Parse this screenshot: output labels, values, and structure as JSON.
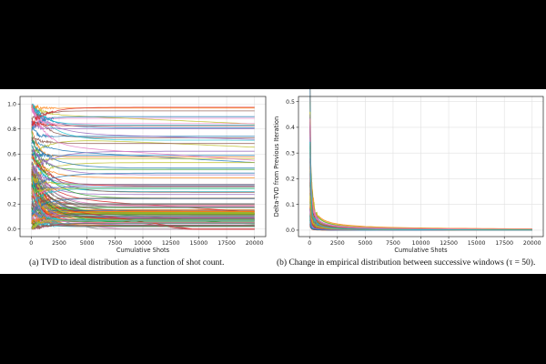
{
  "figure": {
    "captions": [
      "(a)  TVD to ideal distribution as a function of shot count.",
      "(b)  Change in empirical distribution between successive windows (τ = 50)."
    ]
  },
  "chart_data": [
    {
      "type": "line",
      "panel": "a",
      "xlabel": "Cumulative Shots",
      "ylabel": "TVD from Ground Truth",
      "xlim": [
        -1000,
        21000
      ],
      "ylim": [
        -0.06,
        1.06
      ],
      "xticks": [
        "0",
        "2500",
        "5000",
        "7500",
        "10000",
        "12500",
        "15000",
        "17500",
        "20000"
      ],
      "yticks": [
        "0.0",
        "0.2",
        "0.4",
        "0.6",
        "0.8",
        "1.0"
      ],
      "grid": true,
      "series_count": 120,
      "description": "Many runs; each converges from a noisy start near x=0 to a flat plateau between 0 and 1.",
      "sample_series": [
        {
          "x": [
            0,
            2500,
            5000,
            10000,
            15000,
            20000
          ],
          "values": [
            0.92,
            0.85,
            0.8,
            0.75,
            0.7,
            0.66
          ]
        },
        {
          "x": [
            0,
            2500,
            5000,
            10000,
            15000,
            20000
          ],
          "values": [
            0.75,
            0.6,
            0.56,
            0.55,
            0.54,
            0.54
          ]
        },
        {
          "x": [
            0,
            2500,
            5000,
            10000,
            15000,
            20000
          ],
          "values": [
            0.4,
            0.34,
            0.33,
            0.33,
            0.33,
            0.33
          ]
        },
        {
          "x": [
            0,
            2500,
            5000,
            10000,
            15000,
            20000
          ],
          "values": [
            0.3,
            0.2,
            0.18,
            0.18,
            0.18,
            0.18
          ]
        },
        {
          "x": [
            0,
            2500,
            5000,
            10000,
            15000,
            20000
          ],
          "values": [
            0.1,
            0.05,
            0.04,
            0.04,
            0.04,
            0.04
          ]
        }
      ]
    },
    {
      "type": "line",
      "panel": "b",
      "xlabel": "Cumulative Shots",
      "ylabel": "Delta-TVD from Previous Iteration",
      "xlim": [
        -1000,
        21000
      ],
      "ylim": [
        -0.025,
        0.52
      ],
      "xticks": [
        "0",
        "2500",
        "5000",
        "7500",
        "10000",
        "12500",
        "15000",
        "17500",
        "20000"
      ],
      "yticks": [
        "0.0",
        "0.1",
        "0.2",
        "0.3",
        "0.4",
        "0.5"
      ],
      "grid": true,
      "series_count": 120,
      "description": "Deltas start up to ~0.5 near x=0 and decay rapidly toward 0 by ~2500 shots.",
      "sample_series": [
        {
          "x": [
            50,
            200,
            500,
            1000,
            2500,
            5000,
            20000
          ],
          "values": [
            0.5,
            0.2,
            0.08,
            0.04,
            0.015,
            0.008,
            0.002
          ]
        },
        {
          "x": [
            50,
            200,
            500,
            1000,
            2500,
            5000,
            20000
          ],
          "values": [
            0.3,
            0.12,
            0.05,
            0.025,
            0.01,
            0.005,
            0.001
          ]
        },
        {
          "x": [
            50,
            200,
            500,
            1000,
            2500,
            5000,
            20000
          ],
          "values": [
            0.15,
            0.06,
            0.03,
            0.015,
            0.006,
            0.003,
            0.001
          ]
        }
      ]
    }
  ],
  "colors": {
    "palette": [
      "#1f77b4",
      "#ff7f0e",
      "#2ca02c",
      "#d62728",
      "#9467bd",
      "#8c564b",
      "#e377c2",
      "#7f7f7f",
      "#bcbd22",
      "#17becf"
    ],
    "grid": "#e0e0e0",
    "axis": "#222222"
  }
}
